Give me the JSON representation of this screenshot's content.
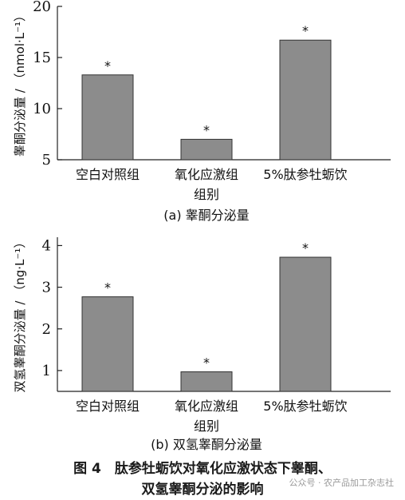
{
  "chart_data": [
    {
      "type": "bar",
      "panel_label": "(a)",
      "title": "睾酮分泌量",
      "ylabel": "睾酮分泌量 / （nmol·L⁻¹）",
      "categories": [
        "空白对照组",
        "氧化应激组\n组别",
        "5%肽参牡蛎饮"
      ],
      "values": [
        13.3,
        7.0,
        16.7
      ],
      "annotations": [
        "*",
        "*",
        "*"
      ],
      "ylim": [
        5,
        20
      ],
      "yticks": [
        5,
        10,
        15,
        20
      ],
      "bar_color": "#8c8c8c",
      "grid": false
    },
    {
      "type": "bar",
      "panel_label": "(b)",
      "title": "双氢睾酮分泌量",
      "ylabel": "双氢睾酮分泌量 / （ng·L⁻¹）",
      "categories": [
        "空白对照组",
        "氧化应激组\n组别",
        "5%肽参牡蛎饮"
      ],
      "values": [
        2.77,
        0.97,
        3.72
      ],
      "annotations": [
        "*",
        "*",
        "*"
      ],
      "ylim": [
        0.5,
        4.2
      ],
      "yticks": [
        1,
        2,
        3,
        4
      ],
      "bar_color": "#8c8c8c",
      "grid": false
    }
  ],
  "figure_caption": {
    "line1": "图 4　肽参牡蛎饮对氧化应激状态下睾酮、",
    "line2": "双氢睾酮分泌的影响"
  },
  "watermark": "公众号 · 农产品加工杂志社"
}
